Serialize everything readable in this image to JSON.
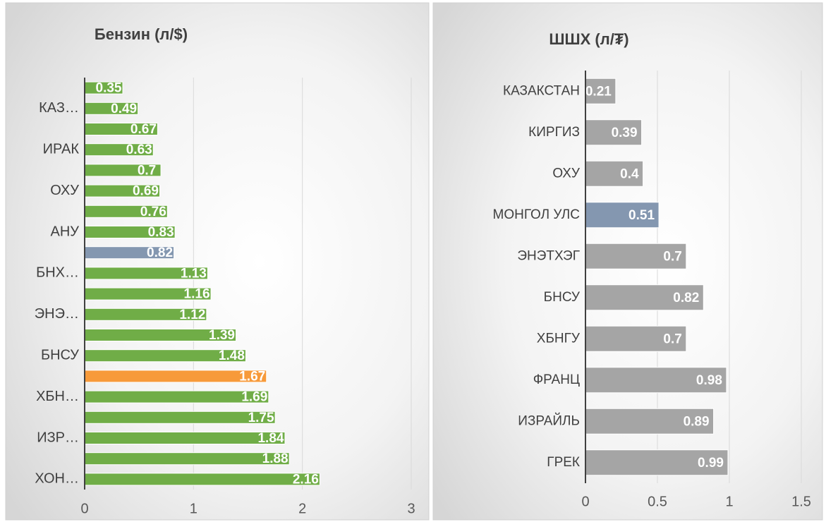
{
  "chart_data": [
    {
      "type": "bar",
      "orientation": "horizontal",
      "title": "Бензин (л/$)",
      "categories": [
        null,
        "КАЗ…",
        null,
        "ИРАК",
        null,
        "ОХУ",
        null,
        "АНУ",
        null,
        "БНХ…",
        null,
        "ЭНЭ…",
        null,
        "БНСУ",
        null,
        "ХБН…",
        null,
        "ИЗР…",
        null,
        "ХОН…"
      ],
      "values": [
        0.35,
        0.49,
        0.67,
        0.63,
        0.7,
        0.69,
        0.76,
        0.83,
        0.82,
        1.13,
        1.16,
        1.12,
        1.39,
        1.48,
        1.67,
        1.69,
        1.75,
        1.84,
        1.88,
        2.16
      ],
      "colors": [
        "#70ad47",
        "#70ad47",
        "#70ad47",
        "#70ad47",
        "#70ad47",
        "#70ad47",
        "#70ad47",
        "#70ad47",
        "#8497b0",
        "#70ad47",
        "#70ad47",
        "#70ad47",
        "#70ad47",
        "#70ad47",
        "#f79a3a",
        "#70ad47",
        "#70ad47",
        "#70ad47",
        "#70ad47",
        "#70ad47"
      ],
      "xlim": [
        0,
        3
      ],
      "xticks": [
        0,
        1,
        2,
        3
      ],
      "grid": true
    },
    {
      "type": "bar",
      "orientation": "horizontal",
      "title": "ШШХ (л/₮)",
      "categories": [
        "КАЗАКСТАН",
        "КИРГИЗ",
        "ОХУ",
        "МОНГОЛ УЛС",
        "ЭНЭТХЭГ",
        "БНСУ",
        "ХБНГУ",
        "ФРАНЦ",
        "ИЗРАЙЛЬ",
        "ГРЕК"
      ],
      "values": [
        0.21,
        0.39,
        0.4,
        0.51,
        0.7,
        0.82,
        0.7,
        0.98,
        0.89,
        0.99
      ],
      "colors": [
        "#a5a5a5",
        "#a5a5a5",
        "#a5a5a5",
        "#8497b0",
        "#a5a5a5",
        "#a5a5a5",
        "#a5a5a5",
        "#a5a5a5",
        "#a5a5a5",
        "#a5a5a5"
      ],
      "xlim": [
        0,
        1.5
      ],
      "xticks": [
        0,
        0.5,
        1,
        1.5
      ],
      "grid": true
    }
  ]
}
